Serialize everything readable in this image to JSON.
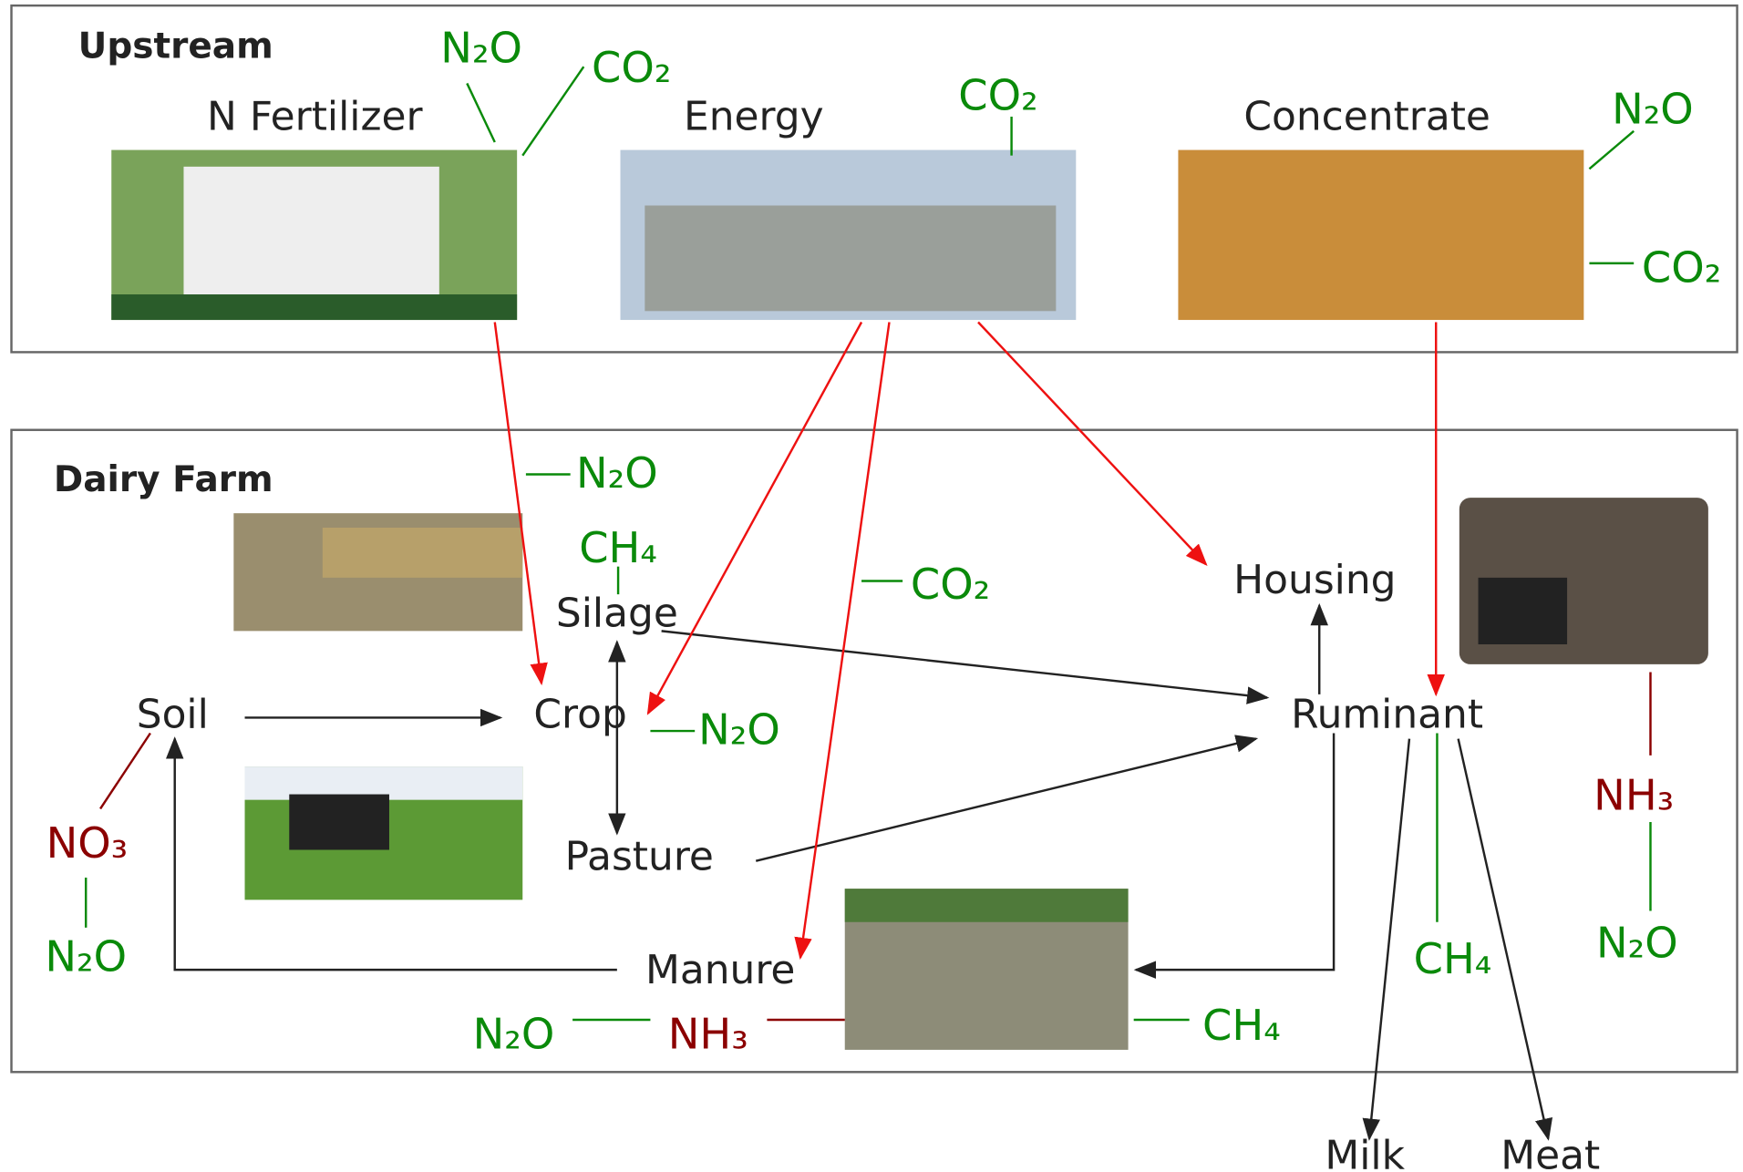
{
  "sections": [
    {
      "title": "Upstream"
    },
    {
      "title": "Dairy Farm"
    }
  ],
  "upstream": {
    "labels": [
      "N Fertilizer",
      "Energy",
      "Concentrate"
    ]
  },
  "nodes": [
    "Soil",
    "Crop",
    "Silage",
    "Pasture",
    "Manure",
    "Housing",
    "Ruminant",
    "Milk",
    "Meat"
  ],
  "emissions": [
    "N₂O",
    "CO₂",
    "CO₂",
    "N₂O",
    "CO₂",
    "N₂O",
    "CH₄",
    "CO₂",
    "N₂O",
    "NO₃",
    "N₂O",
    "N₂O",
    "NH₃",
    "CH₄",
    "CH₄",
    "NH₃",
    "N₂O"
  ]
}
